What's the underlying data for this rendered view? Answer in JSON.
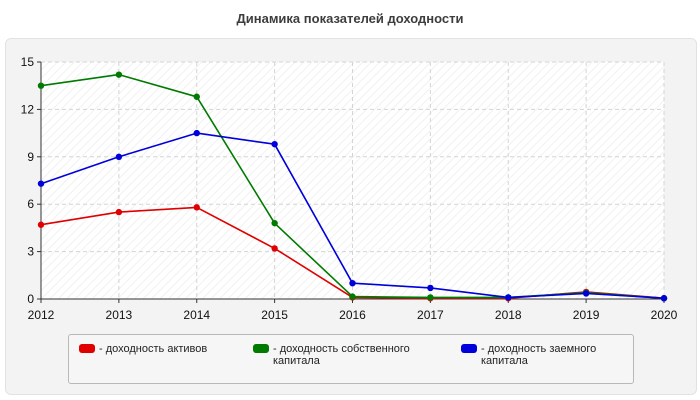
{
  "title": "Динамика показателей доходности",
  "chart_data": {
    "type": "line",
    "title": "Динамика показателей доходности",
    "x": [
      "2012",
      "2013",
      "2014",
      "2015",
      "2016",
      "2017",
      "2018",
      "2019",
      "2020"
    ],
    "ylim": [
      0,
      15
    ],
    "yticks": [
      "0",
      "3",
      "6",
      "9",
      "12",
      "15"
    ],
    "grid": true,
    "legend_position": "bottom",
    "series": [
      {
        "name": "- доходность активов",
        "color": "#e00000",
        "values": [
          4.7,
          5.5,
          5.8,
          3.2,
          0.1,
          0.05,
          0.05,
          0.45,
          0.05
        ]
      },
      {
        "name": "- доходность собственного капитала",
        "color": "#007a00",
        "values": [
          13.5,
          14.2,
          12.8,
          4.8,
          0.15,
          0.1,
          0.1,
          0.4,
          0.05
        ]
      },
      {
        "name": "- доходность заемного капитала",
        "color": "#0000dd",
        "values": [
          7.3,
          9.0,
          10.5,
          9.8,
          1.0,
          0.7,
          0.1,
          0.35,
          0.05
        ]
      }
    ]
  }
}
